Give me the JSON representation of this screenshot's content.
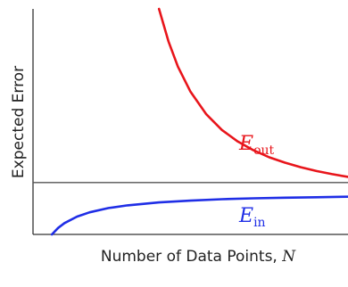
{
  "chart_data": {
    "type": "line",
    "title": "",
    "xlabel_text": "Number of Data Points, ",
    "xlabel_var": "N",
    "ylabel": "Expected Error",
    "xlim": [
      0,
      10
    ],
    "ylim": [
      0,
      10
    ],
    "reference_line_y": 2.3,
    "grid": false,
    "legend": "none",
    "series": [
      {
        "name": "Eout",
        "label_main": "E",
        "label_sub": "out",
        "color": "#e8151b",
        "x": [
          4.0,
          4.3,
          4.6,
          5.0,
          5.5,
          6.0,
          6.5,
          7.0,
          7.5,
          8.0,
          8.5,
          9.0,
          9.5,
          10.0
        ],
        "y": [
          10.0,
          8.56,
          7.44,
          6.33,
          5.33,
          4.63,
          4.12,
          3.73,
          3.42,
          3.18,
          2.98,
          2.81,
          2.67,
          2.55
        ]
      },
      {
        "name": "Ein",
        "label_main": "E",
        "label_sub": "in",
        "color": "#1f2ee6",
        "x": [
          0.6,
          0.8,
          1.0,
          1.4,
          1.8,
          2.4,
          3.0,
          4.0,
          5.0,
          6.0,
          7.0,
          8.0,
          9.0,
          10.0
        ],
        "y": [
          0.0,
          0.29,
          0.5,
          0.79,
          0.98,
          1.17,
          1.29,
          1.42,
          1.5,
          1.56,
          1.6,
          1.63,
          1.65,
          1.67
        ]
      }
    ]
  }
}
